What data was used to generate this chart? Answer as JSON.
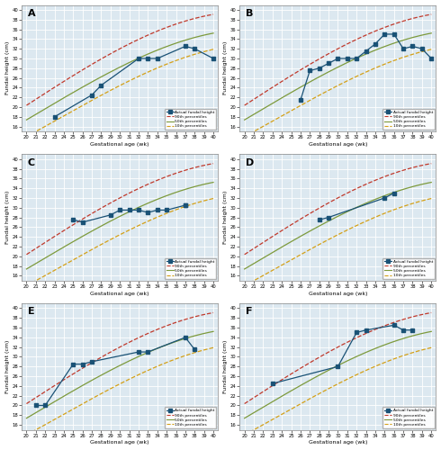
{
  "percentile_ga": [
    20,
    21,
    22,
    23,
    24,
    25,
    26,
    27,
    28,
    29,
    30,
    31,
    32,
    33,
    34,
    35,
    36,
    37,
    38,
    39,
    40
  ],
  "p90": [
    20.5,
    21.6,
    22.8,
    24.0,
    25.2,
    26.4,
    27.6,
    28.8,
    30.0,
    31.1,
    32.1,
    33.1,
    34.0,
    34.8,
    35.6,
    36.3,
    37.0,
    37.6,
    38.2,
    38.7,
    39.2
  ],
  "p50": [
    17.5,
    18.5,
    19.6,
    20.7,
    21.8,
    23.0,
    24.1,
    25.2,
    26.3,
    27.3,
    28.3,
    29.2,
    30.1,
    30.9,
    31.7,
    32.4,
    33.1,
    33.7,
    34.3,
    34.8,
    35.3
  ],
  "p10": [
    14.0,
    15.0,
    16.0,
    17.1,
    18.1,
    19.2,
    20.3,
    21.4,
    22.5,
    23.5,
    24.5,
    25.5,
    26.4,
    27.2,
    28.0,
    28.8,
    29.5,
    30.2,
    30.8,
    31.4,
    32.0
  ],
  "panels": [
    {
      "label": "A",
      "actual_ga": [
        23,
        27,
        28,
        32,
        33,
        34,
        37,
        38,
        40
      ],
      "actual_fh": [
        18,
        22.5,
        24.5,
        30,
        30,
        30,
        32.5,
        32,
        30
      ]
    },
    {
      "label": "B",
      "actual_ga": [
        26,
        27,
        28,
        29,
        30,
        31,
        32,
        33,
        34,
        35,
        36,
        37,
        38,
        39,
        40
      ],
      "actual_fh": [
        21.5,
        27.5,
        28.0,
        29.0,
        30.0,
        30.0,
        30.0,
        31.5,
        33.0,
        35.0,
        35.0,
        32.0,
        32.5,
        32.0,
        30.0
      ]
    },
    {
      "label": "C",
      "actual_ga": [
        25,
        26,
        29,
        30,
        31,
        32,
        33,
        34,
        35,
        37,
        37
      ],
      "actual_fh": [
        27.5,
        27.0,
        28.5,
        29.5,
        29.5,
        29.5,
        29.0,
        29.5,
        29.5,
        30.5,
        30.5
      ]
    },
    {
      "label": "D",
      "actual_ga": [
        28,
        29,
        35,
        36
      ],
      "actual_fh": [
        27.5,
        28.0,
        32.0,
        33.0
      ]
    },
    {
      "label": "E",
      "actual_ga": [
        21,
        22,
        25,
        26,
        27,
        32,
        33,
        37,
        38
      ],
      "actual_fh": [
        20.0,
        20.0,
        28.5,
        28.5,
        29.0,
        31.0,
        31.0,
        34.0,
        31.5
      ]
    },
    {
      "label": "F",
      "actual_ga": [
        23,
        30,
        32,
        33,
        36,
        37,
        38
      ],
      "actual_fh": [
        24.5,
        28.0,
        35.0,
        35.5,
        36.5,
        35.5,
        35.5
      ]
    }
  ],
  "ylim": [
    15,
    41
  ],
  "yticks": [
    16,
    18,
    20,
    22,
    24,
    26,
    28,
    30,
    32,
    34,
    36,
    38,
    40
  ],
  "xticks": [
    20,
    21,
    22,
    23,
    24,
    25,
    26,
    27,
    28,
    29,
    30,
    31,
    32,
    33,
    34,
    35,
    36,
    37,
    38,
    39,
    40
  ],
  "color_actual": "#1a5276",
  "color_p90": "#c0392b",
  "color_p50": "#7d9a3c",
  "color_p10": "#d4a017",
  "bg_color": "#dce8f0",
  "grid_color": "#ffffff",
  "border_color": "#888888"
}
